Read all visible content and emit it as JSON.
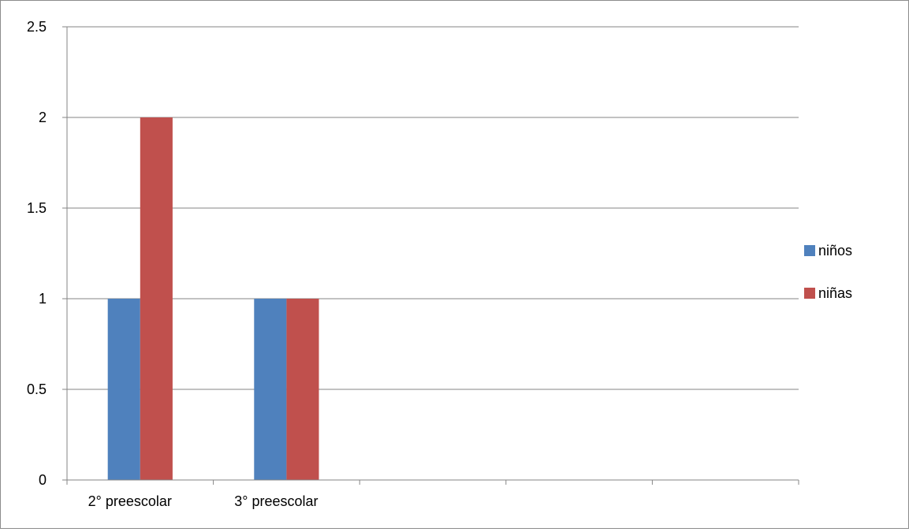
{
  "chart_data": {
    "type": "bar",
    "categories": [
      "2° preescolar",
      "3° preescolar",
      "",
      "",
      ""
    ],
    "series": [
      {
        "name": "niños",
        "values": [
          1,
          1,
          null,
          null,
          null
        ],
        "color": "#4f81bd"
      },
      {
        "name": "niñas",
        "values": [
          2,
          1,
          null,
          null,
          null
        ],
        "color": "#c0504d"
      }
    ],
    "yticks": [
      "0",
      "0.5",
      "1",
      "1.5",
      "2",
      "2.5"
    ],
    "ylim": [
      0,
      2.5
    ],
    "grid": true,
    "legend": "right",
    "title": "",
    "xlabel": "",
    "ylabel": ""
  }
}
